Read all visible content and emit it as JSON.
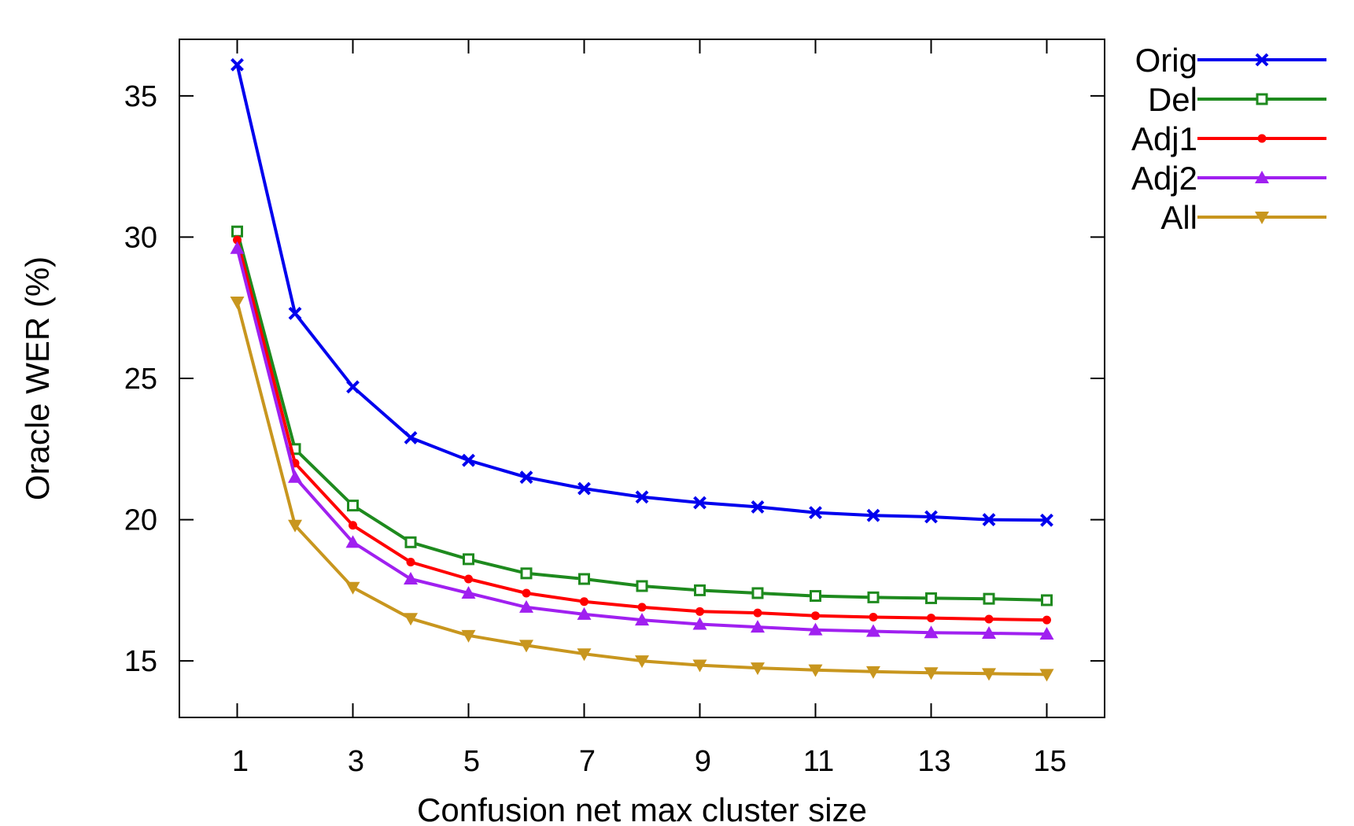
{
  "chart_data": {
    "type": "line",
    "xlabel": "Confusion net max cluster size",
    "ylabel": "Oracle WER (%)",
    "xlim": [
      0,
      16
    ],
    "ylim": [
      13,
      37
    ],
    "xticks": [
      1,
      3,
      5,
      7,
      9,
      11,
      13,
      15
    ],
    "yticks": [
      15,
      20,
      25,
      30,
      35
    ],
    "grid": false,
    "legend_position": "outside-top-right",
    "x": [
      1,
      2,
      3,
      4,
      5,
      6,
      7,
      8,
      9,
      10,
      11,
      12,
      13,
      14,
      15
    ],
    "series": [
      {
        "name": "Orig",
        "color": "#0000ee",
        "marker": "x",
        "values": [
          36.1,
          27.3,
          24.7,
          22.9,
          22.1,
          21.5,
          21.1,
          20.8,
          20.6,
          20.45,
          20.25,
          20.15,
          20.1,
          20.0,
          19.98
        ]
      },
      {
        "name": "Del",
        "color": "#1e8a1e",
        "marker": "square",
        "values": [
          30.2,
          22.5,
          20.5,
          19.2,
          18.6,
          18.1,
          17.9,
          17.65,
          17.5,
          17.4,
          17.3,
          17.25,
          17.22,
          17.2,
          17.15
        ]
      },
      {
        "name": "Adj1",
        "color": "#ff0000",
        "marker": "circle",
        "values": [
          29.9,
          22.0,
          19.8,
          18.5,
          17.9,
          17.4,
          17.1,
          16.9,
          16.75,
          16.7,
          16.6,
          16.55,
          16.52,
          16.48,
          16.45
        ]
      },
      {
        "name": "Adj2",
        "color": "#a020f0",
        "marker": "triangle-up",
        "values": [
          29.6,
          21.5,
          19.2,
          17.9,
          17.4,
          16.9,
          16.65,
          16.45,
          16.3,
          16.2,
          16.1,
          16.05,
          16.0,
          15.98,
          15.95
        ]
      },
      {
        "name": "All",
        "color": "#c8961e",
        "marker": "triangle-down",
        "values": [
          27.7,
          19.8,
          17.6,
          16.5,
          15.9,
          15.55,
          15.25,
          15.0,
          14.85,
          14.75,
          14.68,
          14.62,
          14.58,
          14.55,
          14.52
        ]
      }
    ]
  }
}
